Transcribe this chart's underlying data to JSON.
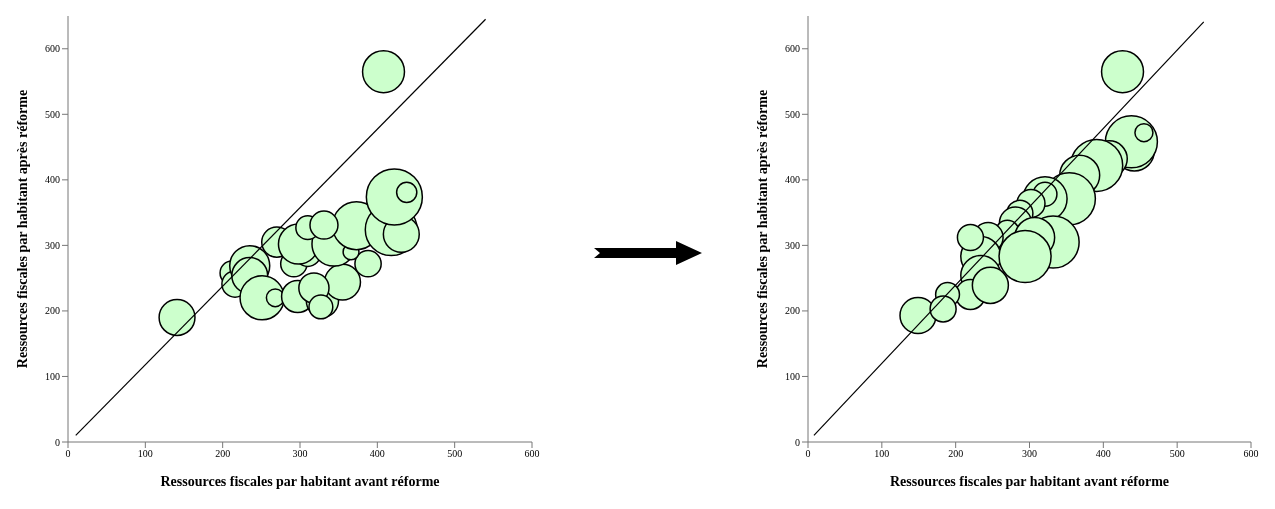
{
  "chart_data": [
    {
      "type": "bubble",
      "xlabel": "Ressources fiscales par habitant avant réforme",
      "ylabel": "Ressources fiscales par habitant après réforme",
      "xlim": [
        0,
        600
      ],
      "ylim": [
        0,
        650
      ],
      "xticks": [
        0,
        100,
        200,
        300,
        400,
        500,
        600
      ],
      "yticks": [
        0,
        100,
        200,
        300,
        400,
        500,
        600
      ],
      "grid": false,
      "legend": false,
      "series": [
        {
          "type": "bubble",
          "color": "#ccffcc",
          "x": [
            141,
            408,
            212,
            216,
            235,
            235,
            251,
            268,
            297,
            292,
            310,
            270,
            298,
            329,
            355,
            344,
            388,
            366,
            373,
            418,
            431,
            422,
            438,
            310,
            331,
            318,
            327
          ],
          "values": [
            190,
            565,
            258,
            241,
            269,
            254,
            220,
            220,
            222,
            272,
            288,
            305,
            302,
            215,
            244,
            302,
            272,
            290,
            330,
            324,
            317,
            374,
            381,
            327,
            331,
            235,
            206
          ],
          "sizes": [
            0.41,
            0.56,
            0.18,
            0.22,
            0.51,
            0.41,
            0.62,
            0.1,
            0.33,
            0.22,
            0.22,
            0.29,
            0.51,
            0.33,
            0.41,
            0.62,
            0.22,
            0.08,
            0.73,
            0.86,
            0.41,
            1,
            0.13,
            0.18,
            0.25,
            0.29,
            0.18
          ]
        },
        {
          "type": "line",
          "color": "#000000",
          "x": [
            10,
            540
          ],
          "values": [
            10,
            645
          ]
        }
      ]
    },
    {
      "type": "bubble",
      "xlabel": "Ressources fiscales par habitant avant réforme",
      "ylabel": "Ressources fiscales par habitant après réforme",
      "xlim": [
        0,
        600
      ],
      "ylim": [
        0,
        650
      ],
      "xticks": [
        0,
        100,
        200,
        300,
        400,
        500,
        600
      ],
      "yticks": [
        0,
        100,
        200,
        300,
        400,
        500,
        600
      ],
      "grid": false,
      "legend": false,
      "series": [
        {
          "type": "bubble",
          "color": "#ccffcc",
          "x": [
            149,
            426,
            442,
            438,
            408,
            391,
            368,
            354,
            321,
            321,
            302,
            287,
            281,
            332,
            270,
            307,
            244,
            234,
            220,
            234,
            220,
            189,
            183,
            247,
            294,
            455
          ],
          "values": [
            193,
            565,
            444,
            458,
            432,
            422,
            407,
            371,
            371,
            378,
            364,
            349,
            334,
            305,
            320,
            312,
            312,
            283,
            312,
            254,
            225,
            225,
            203,
            239,
            283,
            472
          ],
          "sizes": [
            0.48,
            0.65,
            0.59,
            1,
            0.48,
            1,
            0.59,
            1,
            0.72,
            0.21,
            0.29,
            0.25,
            0.38,
            1,
            0.21,
            0.59,
            0.33,
            0.59,
            0.25,
            0.59,
            0.33,
            0.21,
            0.25,
            0.48,
            1,
            0.12
          ]
        },
        {
          "type": "line",
          "color": "#000000",
          "x": [
            8,
            536
          ],
          "values": [
            10,
            641
          ]
        }
      ]
    }
  ]
}
